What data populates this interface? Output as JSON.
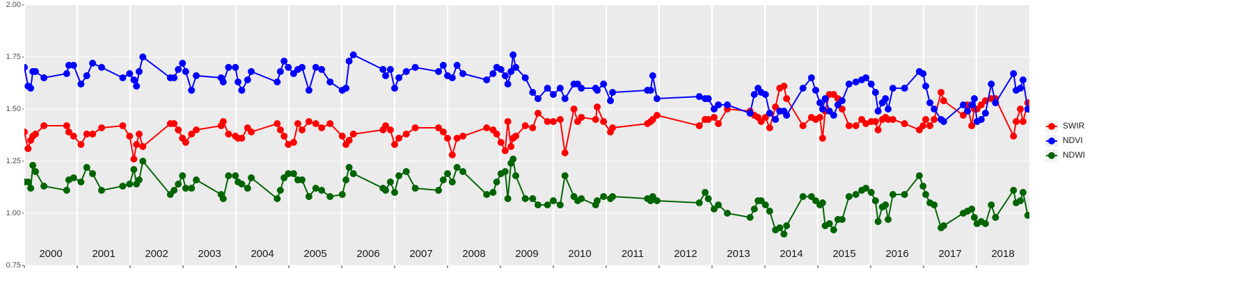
{
  "chart_data": {
    "type": "line",
    "x": [
      2000.0,
      2000.07,
      2000.12,
      2000.16,
      2000.21,
      2000.37,
      2000.8,
      2000.84,
      2000.93,
      2001.07,
      2001.18,
      2001.29,
      2001.46,
      2001.86,
      2001.99,
      2002.07,
      2002.12,
      2002.17,
      2002.24,
      2002.76,
      2002.83,
      2002.91,
      2002.99,
      2003.05,
      2003.16,
      2003.25,
      2003.72,
      2003.76,
      2003.86,
      2003.99,
      2004.04,
      2004.11,
      2004.22,
      2004.29,
      2004.78,
      2004.84,
      2004.91,
      2004.99,
      2005.09,
      2005.17,
      2005.25,
      2005.38,
      2005.51,
      2005.62,
      2005.78,
      2006.01,
      2006.08,
      2006.14,
      2006.22,
      2006.78,
      2006.83,
      2006.92,
      2007.0,
      2007.08,
      2007.22,
      2007.39,
      2007.83,
      2007.92,
      2008.0,
      2008.09,
      2008.18,
      2008.29,
      2008.74,
      2008.86,
      2008.93,
      2009.01,
      2009.09,
      2009.14,
      2009.2,
      2009.24,
      2009.29,
      2009.47,
      2009.61,
      2009.71,
      2009.89,
      2010.0,
      2010.13,
      2010.22,
      2010.39,
      2010.46,
      2010.53,
      2010.8,
      2010.83,
      2010.95,
      2011.08,
      2011.12,
      2011.78,
      2011.84,
      2011.88,
      2011.96,
      2012.76,
      2012.87,
      2012.93,
      2013.04,
      2013.12,
      2013.29,
      2013.72,
      2013.8,
      2013.87,
      2013.93,
      2014.01,
      2014.09,
      2014.2,
      2014.28,
      2014.36,
      2014.41,
      2014.72,
      2014.88,
      2014.96,
      2015.04,
      2015.09,
      2015.14,
      2015.22,
      2015.3,
      2015.38,
      2015.46,
      2015.59,
      2015.72,
      2015.83,
      2015.91,
      2016.01,
      2016.09,
      2016.14,
      2016.22,
      2016.28,
      2016.33,
      2016.42,
      2016.64,
      2016.92,
      2016.99,
      2017.04,
      2017.12,
      2017.2,
      2017.33,
      2017.38,
      2017.75,
      2017.83,
      2017.91,
      2017.96,
      2018.01,
      2018.09,
      2018.17,
      2018.28,
      2018.36,
      2018.7,
      2018.75,
      2018.83,
      2018.88,
      2018.97
    ],
    "series": [
      {
        "name": "SWIR",
        "color": "#ff0000",
        "values": [
          1.39,
          1.31,
          1.35,
          1.37,
          1.38,
          1.42,
          1.42,
          1.39,
          1.37,
          1.33,
          1.38,
          1.38,
          1.41,
          1.42,
          1.37,
          1.26,
          1.33,
          1.38,
          1.32,
          1.43,
          1.43,
          1.4,
          1.36,
          1.34,
          1.38,
          1.4,
          1.42,
          1.44,
          1.38,
          1.37,
          1.36,
          1.36,
          1.41,
          1.39,
          1.43,
          1.4,
          1.37,
          1.33,
          1.34,
          1.43,
          1.4,
          1.44,
          1.43,
          1.41,
          1.43,
          1.37,
          1.33,
          1.35,
          1.38,
          1.4,
          1.42,
          1.4,
          1.33,
          1.36,
          1.38,
          1.41,
          1.41,
          1.39,
          1.36,
          1.28,
          1.36,
          1.37,
          1.41,
          1.4,
          1.38,
          1.34,
          1.3,
          1.44,
          1.32,
          1.36,
          1.37,
          1.42,
          1.41,
          1.48,
          1.44,
          1.44,
          1.45,
          1.29,
          1.5,
          1.44,
          1.46,
          1.45,
          1.51,
          1.44,
          1.39,
          1.41,
          1.43,
          1.44,
          1.45,
          1.47,
          1.42,
          1.45,
          1.45,
          1.46,
          1.43,
          1.5,
          1.49,
          1.47,
          1.46,
          1.44,
          1.46,
          1.41,
          1.51,
          1.6,
          1.61,
          1.55,
          1.42,
          1.46,
          1.45,
          1.46,
          1.36,
          1.49,
          1.57,
          1.57,
          1.55,
          1.5,
          1.42,
          1.42,
          1.45,
          1.43,
          1.44,
          1.44,
          1.4,
          1.45,
          1.46,
          1.45,
          1.45,
          1.43,
          1.4,
          1.42,
          1.45,
          1.42,
          1.45,
          1.58,
          1.54,
          1.47,
          1.52,
          1.42,
          1.5,
          1.5,
          1.52,
          1.54,
          1.55,
          1.55,
          1.37,
          1.44,
          1.5,
          1.44,
          1.53
        ]
      },
      {
        "name": "NDVI",
        "color": "#0000ff",
        "values": [
          1.7,
          1.61,
          1.6,
          1.68,
          1.68,
          1.65,
          1.67,
          1.71,
          1.71,
          1.62,
          1.66,
          1.72,
          1.7,
          1.65,
          1.67,
          1.64,
          1.61,
          1.68,
          1.75,
          1.65,
          1.65,
          1.69,
          1.72,
          1.68,
          1.59,
          1.66,
          1.65,
          1.63,
          1.7,
          1.7,
          1.63,
          1.59,
          1.64,
          1.68,
          1.63,
          1.68,
          1.73,
          1.7,
          1.67,
          1.69,
          1.7,
          1.59,
          1.7,
          1.69,
          1.63,
          1.59,
          1.6,
          1.73,
          1.76,
          1.69,
          1.66,
          1.69,
          1.6,
          1.65,
          1.68,
          1.7,
          1.68,
          1.71,
          1.66,
          1.65,
          1.71,
          1.67,
          1.64,
          1.67,
          1.7,
          1.69,
          1.66,
          1.62,
          1.68,
          1.76,
          1.7,
          1.65,
          1.58,
          1.55,
          1.6,
          1.57,
          1.6,
          1.55,
          1.62,
          1.62,
          1.6,
          1.6,
          1.59,
          1.62,
          1.54,
          1.58,
          1.59,
          1.59,
          1.66,
          1.55,
          1.56,
          1.55,
          1.55,
          1.5,
          1.52,
          1.52,
          1.48,
          1.57,
          1.6,
          1.58,
          1.57,
          1.48,
          1.45,
          1.49,
          1.49,
          1.47,
          1.6,
          1.65,
          1.59,
          1.53,
          1.5,
          1.55,
          1.49,
          1.47,
          1.52,
          1.54,
          1.62,
          1.63,
          1.64,
          1.65,
          1.62,
          1.58,
          1.49,
          1.53,
          1.55,
          1.5,
          1.6,
          1.6,
          1.68,
          1.67,
          1.61,
          1.53,
          1.5,
          1.45,
          1.44,
          1.52,
          1.49,
          1.52,
          1.55,
          1.44,
          1.45,
          1.48,
          1.62,
          1.53,
          1.67,
          1.59,
          1.6,
          1.64,
          1.5
        ]
      },
      {
        "name": "NDWI",
        "color": "#006400",
        "values": [
          1.15,
          1.15,
          1.12,
          1.23,
          1.2,
          1.13,
          1.11,
          1.16,
          1.17,
          1.15,
          1.22,
          1.19,
          1.11,
          1.13,
          1.14,
          1.21,
          1.14,
          1.16,
          1.25,
          1.09,
          1.11,
          1.14,
          1.18,
          1.12,
          1.12,
          1.16,
          1.09,
          1.07,
          1.18,
          1.18,
          1.15,
          1.14,
          1.12,
          1.17,
          1.07,
          1.11,
          1.17,
          1.19,
          1.19,
          1.16,
          1.16,
          1.08,
          1.12,
          1.11,
          1.08,
          1.09,
          1.16,
          1.22,
          1.19,
          1.12,
          1.11,
          1.15,
          1.1,
          1.18,
          1.2,
          1.12,
          1.11,
          1.16,
          1.19,
          1.15,
          1.22,
          1.2,
          1.09,
          1.1,
          1.15,
          1.19,
          1.2,
          1.07,
          1.24,
          1.26,
          1.18,
          1.07,
          1.07,
          1.04,
          1.04,
          1.06,
          1.04,
          1.18,
          1.08,
          1.06,
          1.07,
          1.04,
          1.06,
          1.08,
          1.07,
          1.08,
          1.07,
          1.06,
          1.08,
          1.06,
          1.05,
          1.1,
          1.07,
          1.02,
          1.04,
          1.0,
          0.98,
          1.02,
          1.06,
          1.06,
          1.04,
          1.01,
          0.92,
          0.93,
          0.9,
          0.94,
          1.08,
          1.08,
          1.06,
          1.04,
          1.05,
          0.94,
          0.95,
          0.92,
          0.97,
          0.97,
          1.08,
          1.09,
          1.11,
          1.12,
          1.1,
          1.06,
          0.96,
          1.03,
          1.04,
          0.97,
          1.09,
          1.09,
          1.18,
          1.13,
          1.09,
          1.05,
          1.04,
          0.93,
          0.94,
          1.0,
          1.01,
          1.02,
          0.98,
          0.95,
          0.96,
          0.95,
          1.04,
          0.98,
          1.11,
          1.05,
          1.06,
          1.1,
          0.99
        ]
      }
    ],
    "xlim": [
      2000,
      2019
    ],
    "xticks": [
      2000,
      2001,
      2002,
      2003,
      2004,
      2005,
      2006,
      2007,
      2008,
      2009,
      2010,
      2011,
      2012,
      2013,
      2014,
      2015,
      2016,
      2017,
      2018
    ],
    "ylim": [
      0.75,
      2
    ],
    "yticks": [
      0.75,
      {
        "value": 1,
        "label": "1.00"
      },
      1.25,
      {
        "value": 1.5,
        "label": "1.50"
      },
      1.75,
      {
        "value": 2,
        "label": "2.00"
      }
    ],
    "grid": true,
    "legend": "right"
  }
}
